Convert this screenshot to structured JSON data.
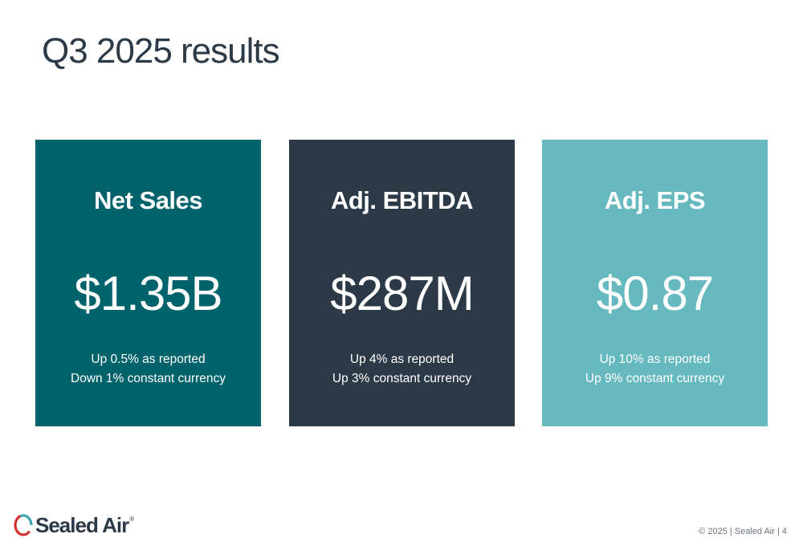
{
  "title": "Q3 2025 results",
  "colors": {
    "title_text": "#2c3a47",
    "card_net_sales": "#00636b",
    "card_ebitda": "#2c3a47",
    "card_eps": "#66b9bf",
    "logo_red": "#d62f2f",
    "logo_teal": "#40a6ad"
  },
  "cards": [
    {
      "heading": "Net Sales",
      "value": "$1.35B",
      "note1": "Up 0.5% as reported",
      "note2": "Down 1% constant currency"
    },
    {
      "heading": "Adj. EBITDA",
      "value": "$287M",
      "note1": "Up 4% as reported",
      "note2": "Up 3% constant currency"
    },
    {
      "heading": "Adj. EPS",
      "value": "$0.87",
      "note1": "Up 10% as reported",
      "note2": "Up 9% constant currency"
    }
  ],
  "logo": {
    "text": "Sealed Air",
    "registered": "®",
    "icon": "sealed-air-logo-icon"
  },
  "footer": "© 2025  |  Sealed Air  |  4"
}
